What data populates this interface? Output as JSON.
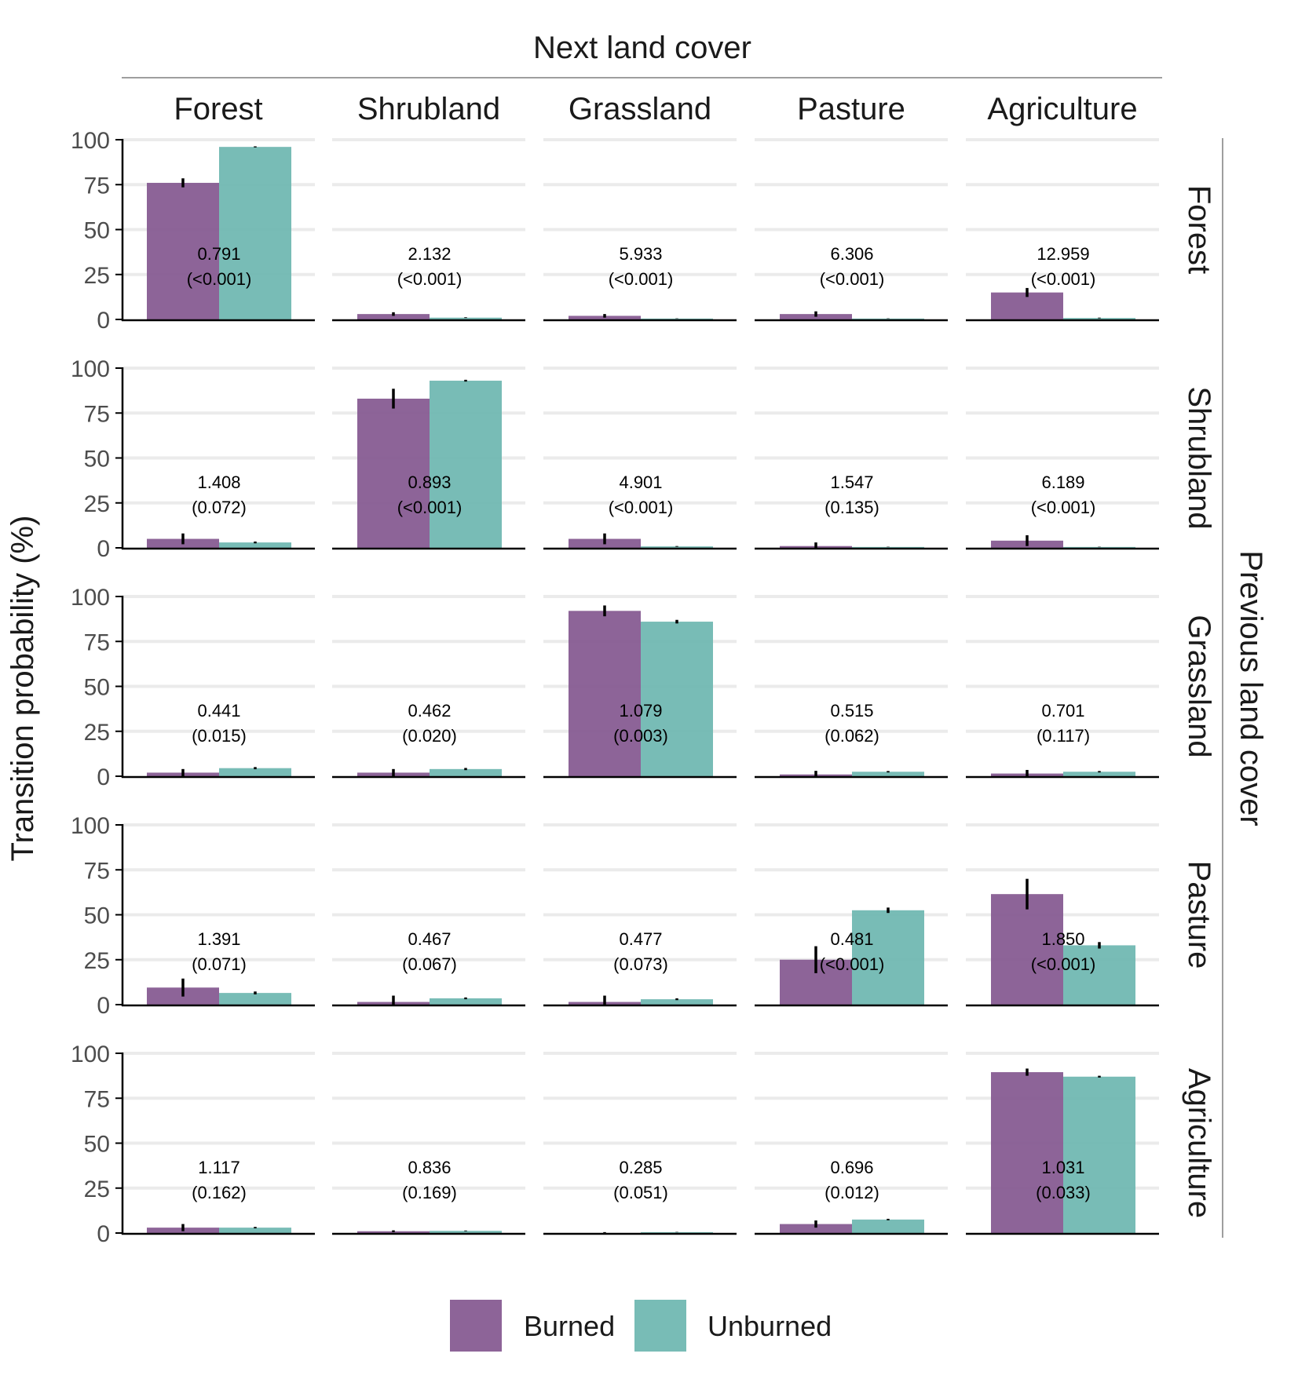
{
  "chart_data": {
    "type": "bar",
    "title": "",
    "col_strip_title": "Next land cover",
    "row_strip_title": "Previous land cover",
    "ylabel": "Transition probability (%)",
    "xlabel": "",
    "ylim": [
      0,
      100
    ],
    "yticks": [
      "0",
      "25",
      "50",
      "75",
      "100"
    ],
    "grid": true,
    "legend_position": "bottom",
    "next_land_cover": [
      "Forest",
      "Shrubland",
      "Grassland",
      "Pasture",
      "Agriculture"
    ],
    "previous_land_cover": [
      "Forest",
      "Shrubland",
      "Grassland",
      "Pasture",
      "Agriculture"
    ],
    "series": [
      {
        "name": "Burned",
        "color": "#83578f",
        "values": [
          [
            76,
            3,
            2,
            3,
            15
          ],
          [
            5,
            83,
            5,
            1,
            4
          ],
          [
            2,
            2,
            92,
            1,
            1.5
          ],
          [
            9.5,
            1.5,
            1.5,
            25,
            61.5
          ],
          [
            3,
            1,
            0,
            5,
            89.5
          ]
        ],
        "error": [
          [
            2.5,
            1,
            1,
            1.5,
            2.5
          ],
          [
            3,
            5.5,
            3,
            2,
            3
          ],
          [
            2,
            2,
            3,
            2,
            2
          ],
          [
            5,
            3.5,
            3.5,
            7.5,
            8.5
          ],
          [
            2,
            0.5,
            0.5,
            2,
            2
          ]
        ]
      },
      {
        "name": "Unburned",
        "color": "#6db6b0",
        "values": [
          [
            96,
            1,
            0.5,
            0.5,
            0.8
          ],
          [
            3,
            93,
            0.8,
            0.5,
            0.5
          ],
          [
            4.5,
            4,
            86,
            2.5,
            2.5
          ],
          [
            6.5,
            3.5,
            3,
            52.5,
            33
          ],
          [
            3,
            1.2,
            0.5,
            7.5,
            87
          ]
        ],
        "error": [
          [
            0.3,
            0.2,
            0.1,
            0.1,
            0.2
          ],
          [
            0.5,
            0.5,
            0.2,
            0.1,
            0.1
          ],
          [
            0.6,
            0.6,
            1,
            0.4,
            0.4
          ],
          [
            0.8,
            0.5,
            0.5,
            1.5,
            1.8
          ],
          [
            0.4,
            0.2,
            0.1,
            0.4,
            0.5
          ]
        ]
      }
    ],
    "annotations": [
      [
        [
          "0.791",
          "(<0.001)"
        ],
        [
          "2.132",
          "(<0.001)"
        ],
        [
          "5.933",
          "(<0.001)"
        ],
        [
          "6.306",
          "(<0.001)"
        ],
        [
          "12.959",
          "(<0.001)"
        ]
      ],
      [
        [
          "1.408",
          "(0.072)"
        ],
        [
          "0.893",
          "(<0.001)"
        ],
        [
          "4.901",
          "(<0.001)"
        ],
        [
          "1.547",
          "(0.135)"
        ],
        [
          "6.189",
          "(<0.001)"
        ]
      ],
      [
        [
          "0.441",
          "(0.015)"
        ],
        [
          "0.462",
          "(0.020)"
        ],
        [
          "1.079",
          "(0.003)"
        ],
        [
          "0.515",
          "(0.062)"
        ],
        [
          "0.701",
          "(0.117)"
        ]
      ],
      [
        [
          "1.391",
          "(0.071)"
        ],
        [
          "0.467",
          "(0.067)"
        ],
        [
          "0.477",
          "(0.073)"
        ],
        [
          "0.481",
          "(<0.001)"
        ],
        [
          "1.850",
          "(<0.001)"
        ]
      ],
      [
        [
          "1.117",
          "(0.162)"
        ],
        [
          "0.836",
          "(0.169)"
        ],
        [
          "0.285",
          "(0.051)"
        ],
        [
          "0.696",
          "(0.012)"
        ],
        [
          "1.031",
          "(0.033)"
        ]
      ]
    ]
  }
}
